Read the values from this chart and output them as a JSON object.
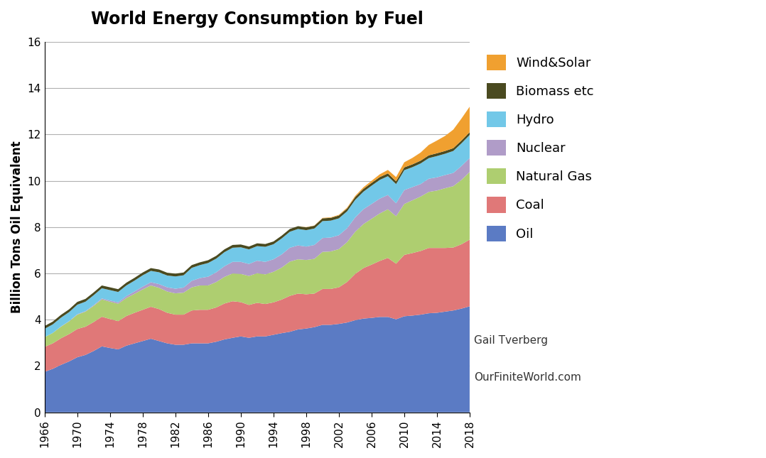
{
  "title": "World Energy Consumption by Fuel",
  "ylabel": "Billion Tons Oil Equivalent",
  "credit1": "Gail Tverberg",
  "credit2": "OurFiniteWorld.com",
  "ylim": [
    0,
    16
  ],
  "yticks": [
    0,
    2,
    4,
    6,
    8,
    10,
    12,
    14,
    16
  ],
  "years": [
    1966,
    1967,
    1968,
    1969,
    1970,
    1971,
    1972,
    1973,
    1974,
    1975,
    1976,
    1977,
    1978,
    1979,
    1980,
    1981,
    1982,
    1983,
    1984,
    1985,
    1986,
    1987,
    1988,
    1989,
    1990,
    1991,
    1992,
    1993,
    1994,
    1995,
    1996,
    1997,
    1998,
    1999,
    2000,
    2001,
    2002,
    2003,
    2004,
    2005,
    2006,
    2007,
    2008,
    2009,
    2010,
    2011,
    2012,
    2013,
    2014,
    2015,
    2016,
    2017,
    2018
  ],
  "series": {
    "Oil": [
      1.75,
      1.88,
      2.05,
      2.2,
      2.38,
      2.48,
      2.65,
      2.85,
      2.78,
      2.72,
      2.88,
      2.98,
      3.08,
      3.18,
      3.08,
      2.98,
      2.92,
      2.92,
      2.98,
      2.98,
      2.98,
      3.05,
      3.15,
      3.22,
      3.28,
      3.22,
      3.28,
      3.28,
      3.35,
      3.42,
      3.48,
      3.58,
      3.62,
      3.68,
      3.78,
      3.78,
      3.82,
      3.88,
      3.98,
      4.05,
      4.08,
      4.12,
      4.12,
      4.02,
      4.15,
      4.18,
      4.22,
      4.28,
      4.3,
      4.35,
      4.4,
      4.48,
      4.58
    ],
    "Coal": [
      1.08,
      1.1,
      1.15,
      1.18,
      1.22,
      1.22,
      1.25,
      1.28,
      1.25,
      1.22,
      1.28,
      1.32,
      1.35,
      1.38,
      1.38,
      1.32,
      1.3,
      1.3,
      1.42,
      1.45,
      1.45,
      1.48,
      1.55,
      1.58,
      1.48,
      1.42,
      1.45,
      1.4,
      1.4,
      1.45,
      1.55,
      1.55,
      1.48,
      1.45,
      1.55,
      1.55,
      1.58,
      1.75,
      2.0,
      2.18,
      2.3,
      2.42,
      2.55,
      2.4,
      2.65,
      2.7,
      2.75,
      2.82,
      2.8,
      2.75,
      2.72,
      2.78,
      2.88
    ],
    "Natural Gas": [
      0.42,
      0.45,
      0.5,
      0.55,
      0.62,
      0.65,
      0.7,
      0.75,
      0.75,
      0.75,
      0.78,
      0.82,
      0.88,
      0.92,
      0.92,
      0.92,
      0.92,
      0.95,
      1.0,
      1.05,
      1.05,
      1.1,
      1.15,
      1.2,
      1.22,
      1.25,
      1.28,
      1.28,
      1.32,
      1.38,
      1.48,
      1.48,
      1.48,
      1.5,
      1.6,
      1.62,
      1.65,
      1.72,
      1.82,
      1.9,
      1.98,
      2.05,
      2.1,
      2.05,
      2.2,
      2.28,
      2.35,
      2.42,
      2.48,
      2.58,
      2.65,
      2.78,
      2.92
    ],
    "Nuclear": [
      0.0,
      0.0,
      0.01,
      0.01,
      0.02,
      0.02,
      0.03,
      0.04,
      0.05,
      0.06,
      0.08,
      0.1,
      0.12,
      0.14,
      0.16,
      0.18,
      0.2,
      0.22,
      0.28,
      0.32,
      0.38,
      0.42,
      0.46,
      0.5,
      0.52,
      0.52,
      0.54,
      0.54,
      0.54,
      0.57,
      0.6,
      0.6,
      0.58,
      0.6,
      0.6,
      0.6,
      0.6,
      0.6,
      0.62,
      0.64,
      0.64,
      0.64,
      0.62,
      0.56,
      0.6,
      0.57,
      0.54,
      0.57,
      0.57,
      0.57,
      0.57,
      0.6,
      0.6
    ],
    "Hydro": [
      0.36,
      0.37,
      0.38,
      0.39,
      0.41,
      0.41,
      0.43,
      0.44,
      0.45,
      0.45,
      0.46,
      0.47,
      0.49,
      0.49,
      0.51,
      0.51,
      0.53,
      0.53,
      0.56,
      0.56,
      0.59,
      0.59,
      0.61,
      0.61,
      0.63,
      0.63,
      0.63,
      0.65,
      0.65,
      0.69,
      0.69,
      0.71,
      0.71,
      0.71,
      0.73,
      0.73,
      0.73,
      0.73,
      0.76,
      0.76,
      0.79,
      0.81,
      0.81,
      0.83,
      0.86,
      0.86,
      0.89,
      0.89,
      0.92,
      0.92,
      0.95,
      0.98,
      1.0
    ],
    "Biomass etc": [
      0.12,
      0.12,
      0.12,
      0.12,
      0.12,
      0.12,
      0.12,
      0.12,
      0.12,
      0.12,
      0.12,
      0.12,
      0.12,
      0.12,
      0.12,
      0.12,
      0.12,
      0.12,
      0.12,
      0.12,
      0.12,
      0.12,
      0.12,
      0.12,
      0.12,
      0.12,
      0.12,
      0.12,
      0.12,
      0.12,
      0.12,
      0.12,
      0.12,
      0.12,
      0.12,
      0.12,
      0.12,
      0.12,
      0.12,
      0.12,
      0.12,
      0.12,
      0.12,
      0.12,
      0.12,
      0.12,
      0.12,
      0.12,
      0.12,
      0.12,
      0.12,
      0.12,
      0.12
    ],
    "Wind&Solar": [
      0.0,
      0.0,
      0.0,
      0.0,
      0.0,
      0.0,
      0.0,
      0.0,
      0.0,
      0.0,
      0.0,
      0.0,
      0.0,
      0.0,
      0.0,
      0.0,
      0.0,
      0.0,
      0.0,
      0.0,
      0.0,
      0.0,
      0.0,
      0.0,
      0.0,
      0.0,
      0.0,
      0.0,
      0.0,
      0.0,
      0.0,
      0.0,
      0.01,
      0.01,
      0.02,
      0.02,
      0.03,
      0.04,
      0.05,
      0.07,
      0.09,
      0.12,
      0.15,
      0.18,
      0.22,
      0.28,
      0.35,
      0.45,
      0.55,
      0.65,
      0.8,
      0.95,
      1.1
    ]
  },
  "colors": {
    "Oil": "#5B7BC4",
    "Coal": "#E07878",
    "Natural Gas": "#AECE70",
    "Nuclear": "#B09CC8",
    "Hydro": "#72C8E8",
    "Biomass etc": "#4A4A20",
    "Wind&Solar": "#F0A030"
  },
  "stack_order": [
    "Oil",
    "Coal",
    "Natural Gas",
    "Nuclear",
    "Hydro",
    "Biomass etc",
    "Wind&Solar"
  ],
  "xtick_years": [
    1966,
    1970,
    1974,
    1978,
    1982,
    1986,
    1990,
    1994,
    1998,
    2002,
    2006,
    2010,
    2014,
    2018
  ]
}
